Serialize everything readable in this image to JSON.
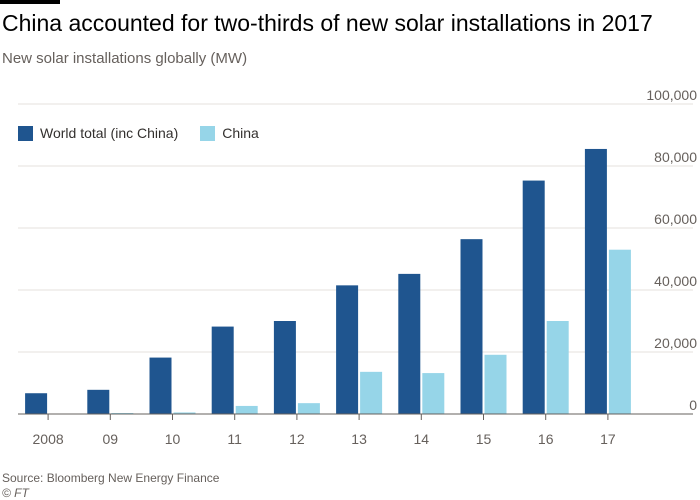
{
  "chart_data": {
    "type": "bar",
    "title": "China accounted for two-thirds of new solar installations in 2017",
    "subtitle": "New solar installations globally (MW)",
    "categories": [
      "2008",
      "09",
      "10",
      "11",
      "12",
      "13",
      "14",
      "15",
      "16",
      "17"
    ],
    "series": [
      {
        "name": "World total (inc China)",
        "color": "#1f558f",
        "values": [
          6700,
          7800,
          18200,
          28200,
          30000,
          41500,
          45200,
          56400,
          75300,
          85500
        ]
      },
      {
        "name": "China",
        "color": "#96d5e8",
        "values": [
          0,
          200,
          500,
          2600,
          3500,
          13600,
          13200,
          19100,
          30000,
          53000
        ]
      }
    ],
    "y_ticks": [
      "0",
      "20,000",
      "40,000",
      "60,000",
      "80,000",
      "100,000"
    ],
    "y_tick_values": [
      0,
      20000,
      40000,
      60000,
      80000,
      100000
    ],
    "ylim": [
      0,
      100000
    ],
    "xlabel": "",
    "ylabel": "",
    "legend_position": "top-left",
    "grid": true,
    "y_axis_side": "right"
  },
  "source": "Source: Bloomberg New Energy Finance",
  "credit": "© FT"
}
